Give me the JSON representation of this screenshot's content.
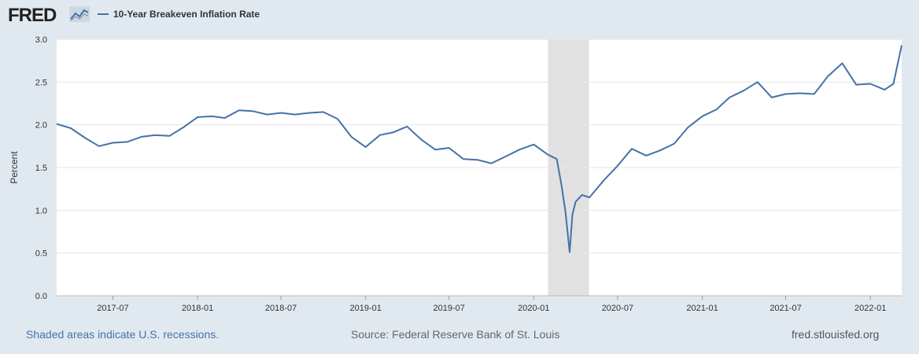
{
  "header": {
    "logo_text": "FRED",
    "logo_icon": "line-graph-icon",
    "legend_label": "10-Year Breakeven Inflation Rate"
  },
  "footer": {
    "recession_note": "Shaded areas indicate U.S. recessions.",
    "source": "Source: Federal Reserve Bank of St. Louis",
    "url": "fred.stlouisfed.org"
  },
  "colors": {
    "series": "#4572a7",
    "recession": "#e1e1e1",
    "plot_bg": "#ffffff",
    "page_bg": "#e1e9f0"
  },
  "chart_data": {
    "type": "line",
    "ylabel": "Percent",
    "ylim": [
      0,
      3.0
    ],
    "yticks": [
      "0.0",
      "0.5",
      "1.0",
      "1.5",
      "2.0",
      "2.5",
      "3.0"
    ],
    "xlim": [
      "2017-03-01",
      "2022-03-10"
    ],
    "xticks": [
      "2017-07",
      "2018-01",
      "2018-07",
      "2019-01",
      "2019-07",
      "2020-01",
      "2020-07",
      "2021-01",
      "2021-07",
      "2022-01"
    ],
    "grid": true,
    "recessions": [
      {
        "start": "2020-02-01",
        "end": "2020-04-30"
      }
    ],
    "series": [
      {
        "name": "10-Year Breakeven Inflation Rate",
        "x": [
          "2017-03-01",
          "2017-04-01",
          "2017-05-01",
          "2017-06-01",
          "2017-07-01",
          "2017-08-01",
          "2017-09-01",
          "2017-10-01",
          "2017-11-01",
          "2017-12-01",
          "2018-01-01",
          "2018-02-01",
          "2018-03-01",
          "2018-04-01",
          "2018-05-01",
          "2018-06-01",
          "2018-07-01",
          "2018-08-01",
          "2018-09-01",
          "2018-10-01",
          "2018-11-01",
          "2018-12-01",
          "2019-01-01",
          "2019-02-01",
          "2019-03-01",
          "2019-04-01",
          "2019-05-01",
          "2019-06-01",
          "2019-07-01",
          "2019-08-01",
          "2019-09-01",
          "2019-10-01",
          "2019-11-01",
          "2019-12-01",
          "2020-01-01",
          "2020-02-01",
          "2020-02-20",
          "2020-03-01",
          "2020-03-10",
          "2020-03-19",
          "2020-03-25",
          "2020-04-01",
          "2020-04-15",
          "2020-05-01",
          "2020-06-01",
          "2020-07-01",
          "2020-08-01",
          "2020-09-01",
          "2020-10-01",
          "2020-11-01",
          "2020-12-01",
          "2021-01-01",
          "2021-02-01",
          "2021-03-01",
          "2021-04-01",
          "2021-05-01",
          "2021-06-01",
          "2021-07-01",
          "2021-08-01",
          "2021-09-01",
          "2021-10-01",
          "2021-11-01",
          "2021-12-01",
          "2022-01-01",
          "2022-02-01",
          "2022-02-20",
          "2022-03-10"
        ],
        "y": [
          2.01,
          1.96,
          1.85,
          1.75,
          1.79,
          1.8,
          1.86,
          1.88,
          1.87,
          1.97,
          2.09,
          2.1,
          2.08,
          2.17,
          2.16,
          2.12,
          2.14,
          2.12,
          2.14,
          2.15,
          2.07,
          1.86,
          1.74,
          1.88,
          1.91,
          1.98,
          1.83,
          1.71,
          1.73,
          1.6,
          1.59,
          1.55,
          1.63,
          1.71,
          1.77,
          1.65,
          1.6,
          1.3,
          0.98,
          0.51,
          0.95,
          1.1,
          1.18,
          1.15,
          1.35,
          1.52,
          1.72,
          1.64,
          1.7,
          1.78,
          1.97,
          2.1,
          2.18,
          2.32,
          2.4,
          2.5,
          2.32,
          2.36,
          2.37,
          2.36,
          2.57,
          2.72,
          2.47,
          2.48,
          2.41,
          2.48,
          2.93
        ]
      }
    ]
  }
}
